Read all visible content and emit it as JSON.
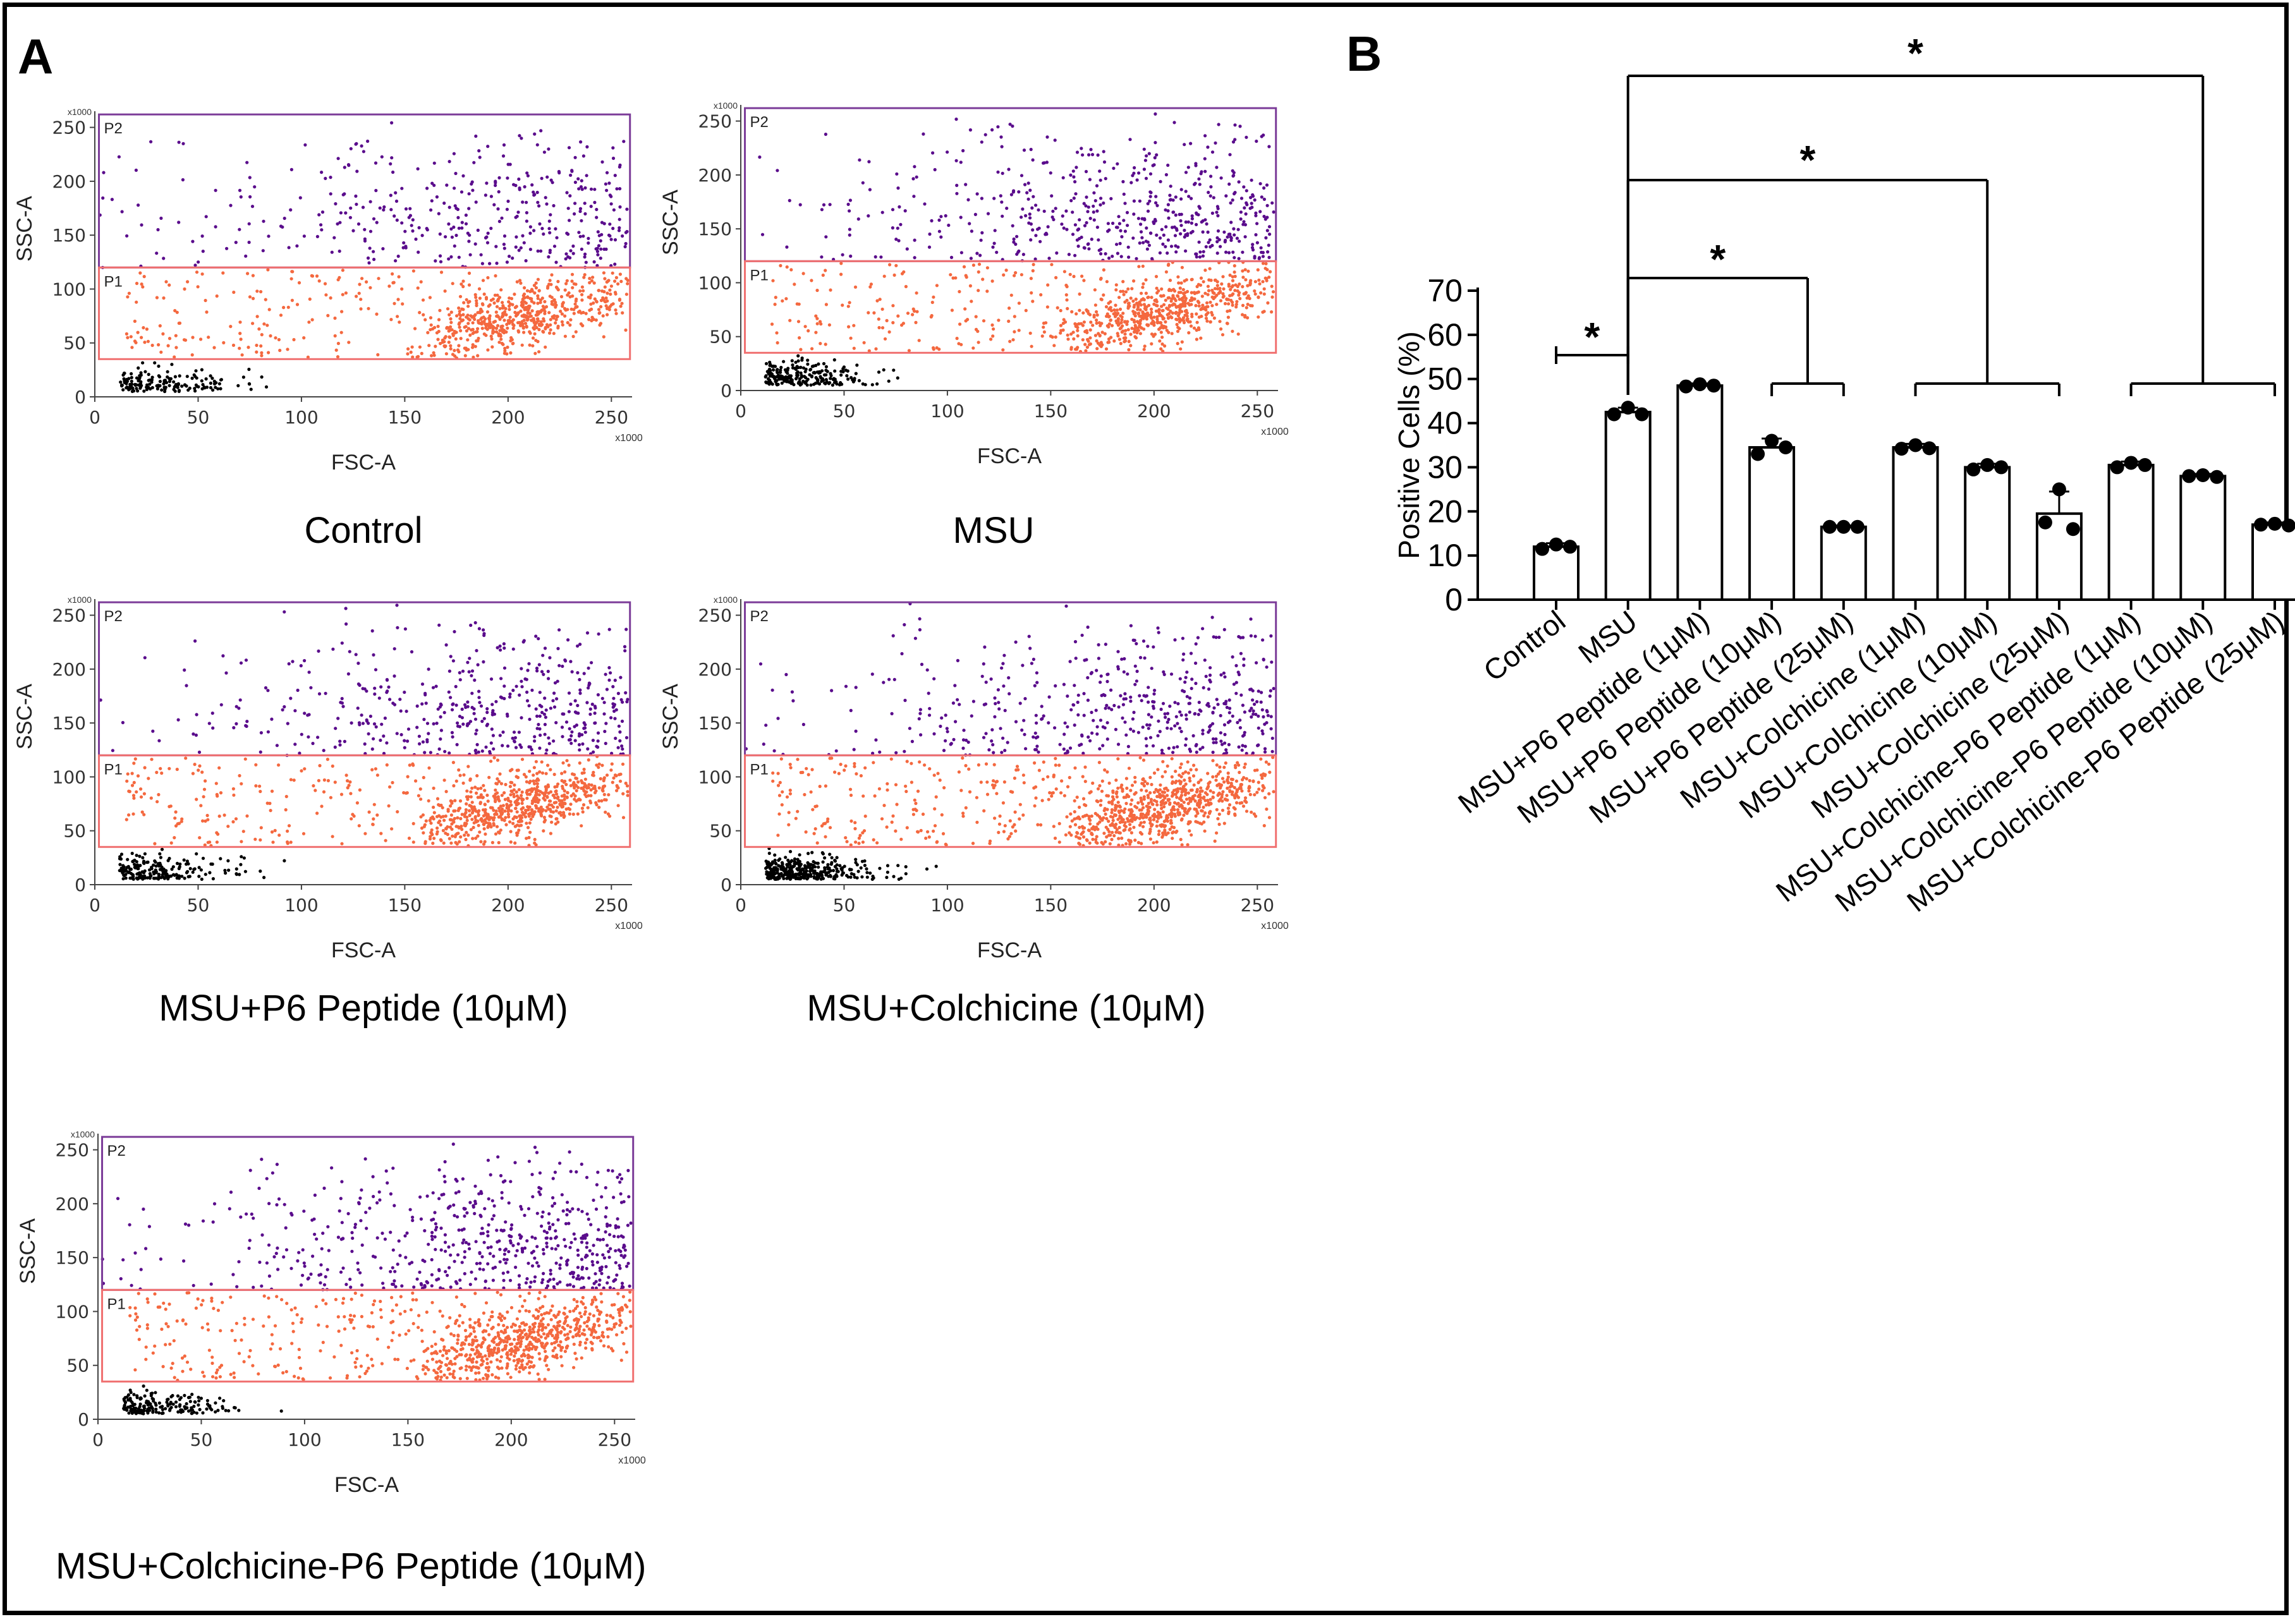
{
  "panels": {
    "a_label": "A",
    "b_label": "B"
  },
  "flow_plots": [
    {
      "caption": "Control"
    },
    {
      "caption": "MSU"
    },
    {
      "caption": "MSU+P6 Peptide (10μM)"
    },
    {
      "caption": "MSU+Colchicine (10μM)"
    },
    {
      "caption": "MSU+Colchicine-P6 Peptide (10μM)"
    }
  ],
  "flow_axes": {
    "xlabel": "FSC-A",
    "ylabel": "SSC-A",
    "x_multiplier": "x1000",
    "y_multiplier": "x1000",
    "xticks": [
      "0",
      "50",
      "100",
      "150",
      "200",
      "250"
    ],
    "yticks": [
      "0",
      "50",
      "100",
      "150",
      "200",
      "250"
    ],
    "gate_p1": "P1",
    "gate_p2": "P2"
  },
  "colors": {
    "p2_gate": "#7b3b98",
    "p2_dots": "#5a0c8c",
    "p1_gate": "#f07070",
    "p1_dots": "#f4683f",
    "debris": "#000000"
  },
  "chart_data": {
    "type": "bar",
    "title": "",
    "xlabel": "",
    "ylabel": "Positive Cells (%)",
    "ylim": [
      0,
      70
    ],
    "yticks": [
      "0",
      "10",
      "20",
      "30",
      "40",
      "50",
      "60",
      "70"
    ],
    "categories": [
      "Control",
      "MSU",
      "MSU+P6 Peptide (1μM)",
      "MSU+P6 Peptide (10μM)",
      "MSU+P6 Peptide (25μM)",
      "MSU+Colchicine (1μM)",
      "MSU+Colchicine (10μM)",
      "MSU+Colchicine (25μM)",
      "MSU+Colchicine-P6 Peptide (1μM)",
      "MSU+Colchicine-P6 Peptide (10μM)",
      "MSU+Colchicine-P6 Peptide (25μM)"
    ],
    "values": [
      12,
      42.5,
      48.5,
      34.5,
      16.5,
      34.5,
      30,
      19.5,
      30.5,
      28,
      17
    ],
    "errors": [
      0.8,
      1,
      0.5,
      2,
      0.3,
      0.8,
      0.8,
      5,
      0.8,
      0.5,
      0.5
    ],
    "points": [
      [
        11.5,
        12.5,
        12
      ],
      [
        42,
        43.5,
        42
      ],
      [
        48.3,
        48.8,
        48.5
      ],
      [
        33,
        36,
        34.5
      ],
      [
        16.5,
        16.5,
        16.5
      ],
      [
        34.2,
        35,
        34.3
      ],
      [
        29.5,
        30.5,
        30
      ],
      [
        17.5,
        25,
        16
      ],
      [
        30,
        31,
        30.5
      ],
      [
        28,
        28.2,
        27.8
      ],
      [
        17,
        17.2,
        16.8
      ]
    ],
    "significance": [
      {
        "label": "*"
      },
      {
        "label": "*"
      },
      {
        "label": "*"
      },
      {
        "label": "*"
      }
    ]
  }
}
